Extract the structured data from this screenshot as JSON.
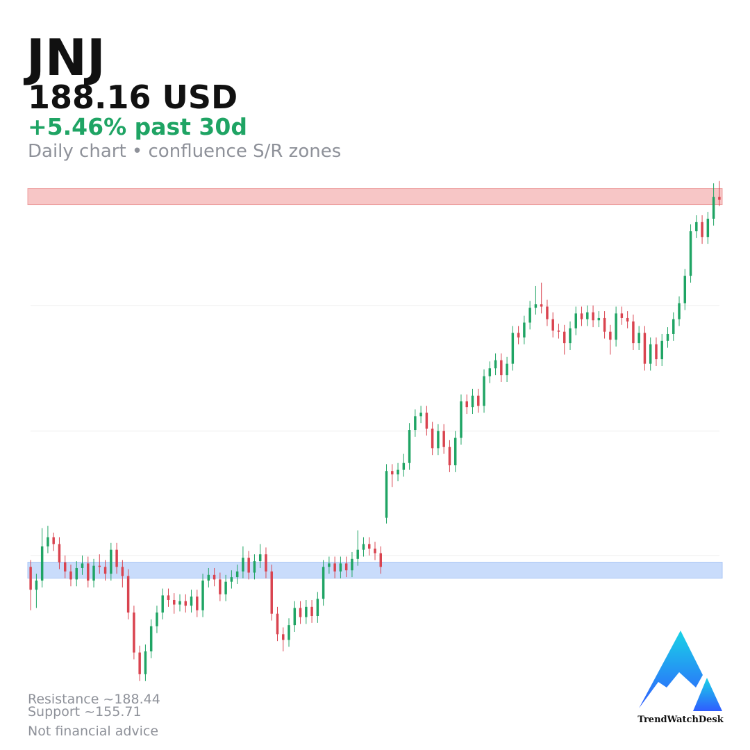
{
  "chart_data": {
    "type": "candlestick",
    "ticker": "JNJ",
    "price_label": "188.16 USD",
    "change_label": "+5.46% past 30d",
    "subtitle": "Daily chart • confluence S/R zones",
    "footer_lines": [
      "Resistance ~188.44",
      "Support ~155.71",
      "Not financial advice"
    ],
    "brand": "TrendWatchDesk",
    "up_color": "#1fa464",
    "down_color": "#d9434f",
    "ylim": [
      146.0,
      190.0
    ],
    "grid_values": [
      178.9,
      167.9,
      157.0
    ],
    "resistance_zone": {
      "low": 187.74,
      "high": 189.14,
      "color": "#f7c6c6"
    },
    "support_zone": {
      "low": 155.01,
      "high": 156.41,
      "color": "#c9dcfb"
    },
    "open": [
      156.0,
      154.0,
      154.8,
      157.8,
      158.6,
      158.0,
      156.4,
      155.6,
      154.9,
      155.9,
      156.3,
      154.8,
      156.1,
      156.0,
      155.4,
      157.5,
      156.0,
      155.2,
      152.0,
      148.5,
      146.6,
      148.6,
      150.8,
      152.0,
      153.5,
      153.1,
      152.7,
      153.0,
      152.6,
      153.4,
      152.2,
      154.8,
      155.3,
      154.9,
      153.6,
      154.7,
      155.1,
      155.6,
      156.8,
      155.5,
      156.5,
      157.1,
      155.6,
      151.9,
      150.1,
      149.6,
      150.9,
      152.4,
      151.6,
      152.5,
      151.7,
      153.2,
      156.0,
      156.3,
      155.6,
      156.3,
      155.7,
      156.7,
      157.5,
      158.0,
      157.6,
      157.2,
      160.3,
      164.4,
      164.1,
      164.5,
      165.1,
      168.0,
      169.2,
      169.5,
      168.1,
      166.4,
      167.9,
      166.5,
      164.9,
      167.3,
      170.5,
      170.0,
      171.0,
      170.1,
      172.7,
      173.4,
      174.1,
      172.8,
      173.8,
      176.5,
      176.1,
      177.4,
      178.7,
      179.0,
      178.8,
      177.7,
      176.7,
      176.6,
      175.6,
      176.9,
      178.2,
      177.7,
      178.3,
      177.6,
      177.8,
      176.6,
      175.9,
      178.2,
      177.8,
      177.5,
      175.6,
      176.5,
      173.8,
      175.5,
      174.2,
      175.8,
      176.4,
      177.7,
      179.1,
      181.5,
      185.4,
      186.2,
      184.9,
      186.5,
      188.4
    ],
    "high": [
      156.6,
      155.4,
      159.4,
      159.6,
      159.0,
      158.6,
      157.0,
      156.2,
      156.5,
      157.0,
      156.9,
      156.7,
      157.1,
      156.6,
      158.1,
      158.1,
      156.6,
      155.8,
      152.6,
      149.1,
      149.2,
      151.4,
      152.6,
      154.1,
      154.1,
      153.7,
      153.6,
      153.6,
      154.0,
      154.0,
      155.4,
      155.9,
      155.9,
      155.5,
      155.3,
      155.7,
      156.2,
      157.8,
      157.4,
      157.1,
      158.0,
      157.7,
      156.2,
      152.5,
      150.7,
      151.5,
      153.0,
      153.0,
      153.1,
      153.1,
      153.8,
      156.6,
      156.9,
      156.9,
      156.9,
      156.9,
      157.3,
      159.2,
      158.6,
      158.6,
      158.2,
      157.8,
      165.0,
      165.0,
      165.1,
      165.9,
      168.6,
      169.8,
      170.1,
      170.1,
      168.7,
      168.5,
      168.5,
      167.1,
      167.9,
      171.1,
      171.1,
      171.6,
      171.6,
      173.3,
      174.0,
      174.7,
      174.7,
      174.4,
      177.1,
      177.1,
      178.0,
      179.3,
      180.6,
      180.9,
      179.4,
      178.3,
      177.3,
      177.2,
      177.5,
      178.8,
      178.8,
      178.9,
      178.9,
      178.4,
      178.4,
      177.2,
      178.8,
      178.8,
      178.4,
      178.1,
      177.1,
      177.1,
      176.1,
      176.1,
      176.4,
      177.0,
      178.3,
      179.7,
      182.1,
      186.0,
      186.8,
      186.8,
      187.1,
      189.6,
      189.8
    ],
    "low": [
      152.2,
      152.4,
      154.2,
      157.2,
      157.4,
      155.8,
      155.0,
      154.3,
      154.3,
      155.3,
      154.2,
      154.2,
      155.4,
      154.8,
      154.8,
      155.4,
      154.2,
      151.4,
      147.9,
      146.0,
      146.0,
      148.0,
      150.2,
      151.4,
      152.5,
      151.9,
      152.1,
      152.0,
      152.0,
      151.6,
      151.6,
      154.2,
      154.3,
      153.0,
      153.0,
      154.1,
      154.5,
      155.0,
      154.9,
      154.9,
      155.9,
      155.0,
      151.3,
      149.5,
      148.6,
      149.0,
      150.3,
      151.0,
      151.0,
      151.1,
      151.1,
      152.6,
      155.4,
      155.0,
      155.0,
      155.1,
      155.1,
      156.1,
      156.9,
      157.0,
      156.6,
      155.4,
      159.8,
      163.0,
      163.5,
      163.9,
      164.5,
      167.4,
      168.6,
      167.5,
      165.8,
      165.8,
      165.9,
      164.3,
      164.3,
      166.7,
      169.4,
      169.4,
      169.5,
      169.5,
      172.1,
      172.8,
      172.2,
      172.2,
      173.2,
      175.5,
      175.5,
      176.8,
      178.1,
      178.2,
      177.1,
      176.1,
      176.0,
      174.6,
      175.0,
      176.3,
      177.1,
      177.1,
      177.0,
      177.0,
      176.0,
      174.6,
      175.3,
      177.2,
      176.9,
      175.0,
      175.0,
      173.2,
      173.2,
      173.6,
      173.6,
      175.2,
      175.8,
      177.1,
      178.5,
      180.9,
      184.8,
      184.3,
      184.3,
      185.9,
      187.6
    ],
    "close": [
      154.0,
      154.8,
      157.8,
      158.6,
      158.0,
      156.4,
      155.6,
      154.9,
      155.9,
      156.3,
      154.8,
      156.1,
      156.0,
      155.4,
      157.5,
      156.0,
      155.2,
      152.0,
      148.5,
      146.6,
      148.6,
      150.8,
      152.0,
      153.5,
      153.1,
      152.7,
      153.0,
      152.6,
      153.4,
      152.2,
      154.8,
      155.3,
      154.9,
      153.6,
      154.7,
      155.1,
      155.6,
      156.8,
      155.5,
      156.5,
      157.1,
      155.6,
      151.9,
      150.1,
      149.6,
      150.9,
      152.4,
      151.6,
      152.5,
      151.7,
      153.2,
      156.0,
      156.3,
      155.6,
      156.3,
      155.7,
      156.7,
      157.5,
      158.0,
      157.6,
      157.2,
      156.0,
      164.4,
      164.1,
      164.5,
      165.1,
      168.0,
      169.2,
      169.5,
      168.1,
      166.4,
      167.9,
      166.5,
      164.9,
      167.3,
      170.5,
      170.0,
      171.0,
      170.1,
      172.7,
      173.4,
      174.1,
      172.8,
      173.8,
      176.5,
      176.1,
      177.4,
      178.7,
      179.0,
      178.8,
      177.7,
      176.7,
      176.6,
      175.6,
      176.9,
      178.2,
      177.7,
      178.3,
      177.6,
      177.8,
      176.6,
      175.9,
      178.2,
      177.8,
      177.5,
      175.6,
      176.5,
      173.8,
      175.5,
      174.2,
      175.8,
      176.4,
      177.7,
      179.1,
      181.5,
      185.4,
      186.2,
      184.9,
      186.5,
      188.4,
      188.16
    ]
  }
}
